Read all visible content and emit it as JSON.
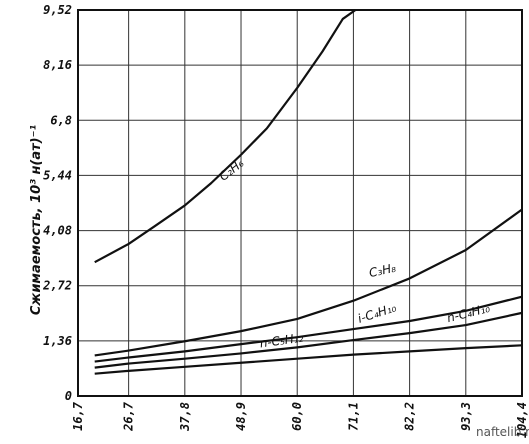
{
  "chart_data": {
    "type": "line",
    "title": "",
    "ylabel": "Сжимаемость, 10³ н(ат)⁻¹",
    "xlabel": "",
    "x_ticks": [
      "16,7",
      "26,7",
      "37,8",
      "48,9",
      "60,0",
      "71,1",
      "82,2",
      "93,3",
      "104,4"
    ],
    "y_ticks": [
      "0",
      "1,36",
      "2,72",
      "4,08",
      "5,44",
      "6,8",
      "8,16",
      "9,52"
    ],
    "xlim": [
      16.7,
      104.4
    ],
    "ylim": [
      0,
      9.52
    ],
    "grid": true,
    "series": [
      {
        "name": "C₂H₆",
        "x": [
          20,
          26.7,
          32,
          37.8,
          43,
          48.9,
          54,
          60,
          65,
          69,
          71.5
        ],
        "values": [
          3.3,
          3.75,
          4.2,
          4.7,
          5.25,
          5.95,
          6.6,
          7.6,
          8.5,
          9.3,
          9.52
        ]
      },
      {
        "name": "C₃H₈",
        "x": [
          20,
          26.7,
          37.8,
          48.9,
          60,
          71.1,
          82.2,
          93.3,
          104.4
        ],
        "values": [
          1.0,
          1.12,
          1.35,
          1.6,
          1.9,
          2.35,
          2.9,
          3.6,
          4.6
        ]
      },
      {
        "name": "i-C₄H₁₀",
        "x": [
          20,
          26.7,
          37.8,
          48.9,
          60,
          71.1,
          82.2,
          93.3,
          104.4
        ],
        "values": [
          0.85,
          0.95,
          1.1,
          1.28,
          1.45,
          1.65,
          1.85,
          2.1,
          2.45
        ]
      },
      {
        "name": "n-C₄H₁₀",
        "x": [
          20,
          26.7,
          37.8,
          48.9,
          60,
          71.1,
          82.2,
          93.3,
          104.4
        ],
        "values": [
          0.7,
          0.8,
          0.92,
          1.05,
          1.2,
          1.38,
          1.55,
          1.75,
          2.05
        ]
      },
      {
        "name": "n-C₅H₁₂",
        "x": [
          20,
          26.7,
          37.8,
          48.9,
          60,
          71.1,
          82.2,
          93.3,
          104.4
        ],
        "values": [
          0.55,
          0.62,
          0.72,
          0.82,
          0.92,
          1.02,
          1.1,
          1.18,
          1.25
        ]
      }
    ]
  },
  "watermark": "naftelib.ru"
}
